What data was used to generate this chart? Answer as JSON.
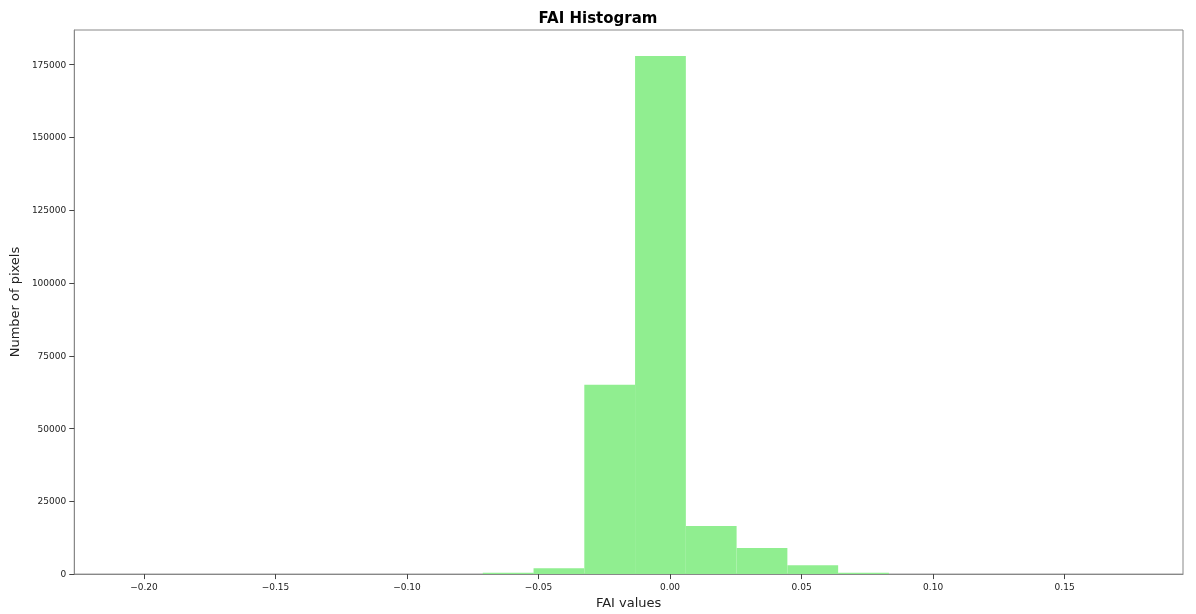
{
  "chart_data": {
    "type": "histogram",
    "title": "FAI Histogram",
    "xlabel": "FAI values",
    "ylabel": "Number of pixels",
    "bins": [
      -0.0712,
      -0.0519,
      -0.0326,
      -0.0133,
      0.006,
      0.0253,
      0.0446,
      0.0639,
      0.0832
    ],
    "values": [
      500,
      2000,
      65000,
      178000,
      16500,
      9000,
      3000,
      500
    ],
    "color": "#90ee90",
    "xlim": [
      -0.2265,
      0.195
    ],
    "xticks": [
      {
        "value": -0.2,
        "label": "−0.20"
      },
      {
        "value": -0.15,
        "label": "−0.15"
      },
      {
        "value": -0.1,
        "label": "−0.10"
      },
      {
        "value": -0.05,
        "label": "−0.05"
      },
      {
        "value": 0,
        "label": "0.00"
      },
      {
        "value": 0.05,
        "label": "0.05"
      },
      {
        "value": 0.1,
        "label": "0.10"
      },
      {
        "value": 0.15,
        "label": "0.15"
      }
    ],
    "ylim": [
      0,
      186900
    ],
    "yticks": [
      0,
      25000,
      50000,
      75000,
      100000,
      125000,
      150000,
      175000
    ],
    "grid": false
  }
}
